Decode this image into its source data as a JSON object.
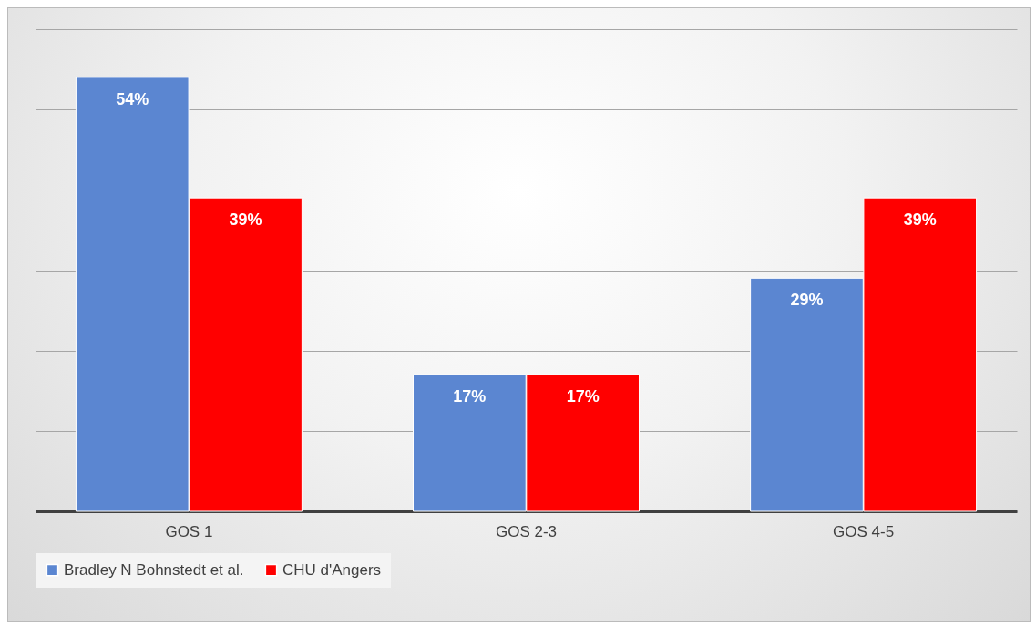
{
  "chart_data": {
    "type": "bar",
    "categories": [
      "GOS 1",
      "GOS 2-3",
      "GOS 4-5"
    ],
    "series": [
      {
        "name": "Bradley N Bohnstedt et al.",
        "color": "#5b86d1",
        "values": [
          54,
          17,
          29
        ],
        "value_labels": [
          "54%",
          "17%",
          "29%"
        ]
      },
      {
        "name": "CHU d'Angers",
        "color": "#ff0000",
        "values": [
          39,
          17,
          39
        ],
        "value_labels": [
          "39%",
          "17%",
          "39%"
        ]
      }
    ],
    "ylim": [
      0,
      60
    ],
    "yticks": [
      {
        "value": 0,
        "label": null
      },
      {
        "value": 10,
        "label": null
      },
      {
        "value": 20,
        "label": null
      },
      {
        "value": 30,
        "label": null
      },
      {
        "value": 40,
        "label": null
      },
      {
        "value": 50,
        "label": null
      },
      {
        "value": 60,
        "label": null
      }
    ],
    "tick_labels": "x",
    "grid": "y",
    "legend": "bottom"
  }
}
